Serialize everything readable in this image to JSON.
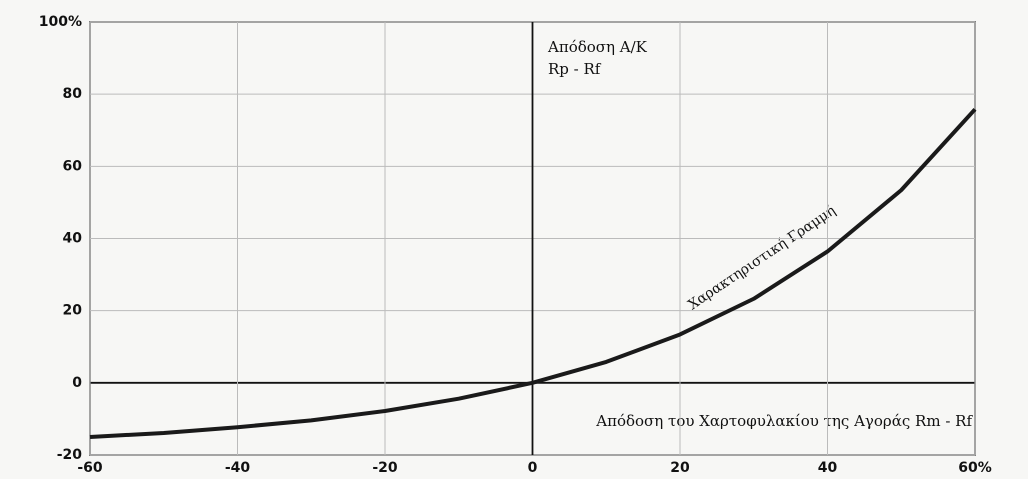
{
  "chart_data": {
    "type": "line",
    "x": [
      -60,
      -50,
      -40,
      -30,
      -20,
      -10,
      0,
      10,
      20,
      30,
      40,
      50,
      60
    ],
    "series": [
      {
        "name": "Χαρακτηριστική Γραμμή",
        "color": "#1a1a1a",
        "values": [
          -15,
          -13.9,
          -12.3,
          -10.4,
          -7.8,
          -4.4,
          0,
          5.8,
          13.4,
          23.3,
          36.4,
          53.4,
          75.8
        ]
      }
    ],
    "xlim": [
      -60,
      60
    ],
    "xticks": [
      -60,
      -40,
      -20,
      0,
      20,
      40,
      {
        "value": 60,
        "label": "60%"
      }
    ],
    "ylim": [
      -20,
      100
    ],
    "yticks": [
      -20,
      0,
      20,
      40,
      60,
      80,
      {
        "value": 100,
        "label": "100%"
      }
    ],
    "xlabel": "Απόδοση του Χαρτοφυλακίου της Αγοράς Rm - Rf",
    "ylabel": "Rp - Rf",
    "annotations": [
      "Απόδοση Α/Κ"
    ],
    "grid": true
  }
}
